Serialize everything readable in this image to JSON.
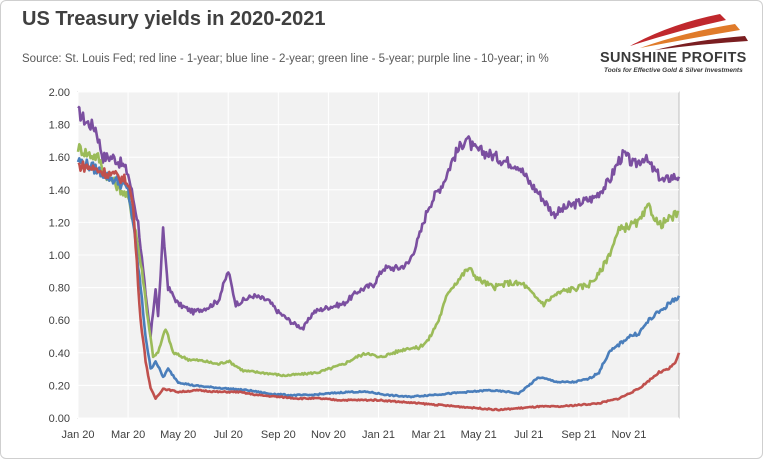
{
  "header": {
    "title": "US Treasury yields in 2020-2021",
    "subtitle": "Source: St. Louis Fed; red line - 1-year; blue line - 2-year; green line - 5-year; purple line - 10-year; in %"
  },
  "logo": {
    "name": "SUNSHINE PROFITS",
    "tagline": "Tools for Effective Gold & Silver Investments",
    "colors": [
      "#c0282d",
      "#e07b2a",
      "#7a1e21"
    ]
  },
  "chart_data": {
    "type": "line",
    "title": "US Treasury yields in 2020-2021",
    "xlabel": "",
    "ylabel": "",
    "ylim": [
      0,
      2
    ],
    "yticks": [
      "0.00",
      "0.20",
      "0.40",
      "0.60",
      "0.80",
      "1.00",
      "1.20",
      "1.40",
      "1.60",
      "1.80",
      "2.00"
    ],
    "xticks": [
      "Jan 20",
      "Mar 20",
      "May 20",
      "Jul 20",
      "Sep 20",
      "Nov 20",
      "Jan 21",
      "Mar 21",
      "May 21",
      "Jul 21",
      "Sep 21",
      "Nov 21"
    ],
    "xlim": [
      0,
      12
    ],
    "grid": true,
    "plot_background": "#f2f2f2",
    "series": [
      {
        "color": "#7b4fa0",
        "points": [
          [
            0,
            1.88
          ],
          [
            0.15,
            1.82
          ],
          [
            0.35,
            1.78
          ],
          [
            0.5,
            1.6
          ],
          [
            0.7,
            1.6
          ],
          [
            0.9,
            1.55
          ],
          [
            1.0,
            1.5
          ],
          [
            1.2,
            1.2
          ],
          [
            1.35,
            0.75
          ],
          [
            1.45,
            0.5
          ],
          [
            1.55,
            0.8
          ],
          [
            1.6,
            0.62
          ],
          [
            1.7,
            1.15
          ],
          [
            1.8,
            0.8
          ],
          [
            2.0,
            0.7
          ],
          [
            2.3,
            0.65
          ],
          [
            2.6,
            0.68
          ],
          [
            2.8,
            0.72
          ],
          [
            3.0,
            0.9
          ],
          [
            3.15,
            0.7
          ],
          [
            3.5,
            0.75
          ],
          [
            3.8,
            0.72
          ],
          [
            4.0,
            0.65
          ],
          [
            4.3,
            0.58
          ],
          [
            4.5,
            0.55
          ],
          [
            4.7,
            0.65
          ],
          [
            5.0,
            0.68
          ],
          [
            5.3,
            0.7
          ],
          [
            5.6,
            0.78
          ],
          [
            5.9,
            0.82
          ],
          [
            6.1,
            0.92
          ],
          [
            6.4,
            0.92
          ],
          [
            6.6,
            0.95
          ],
          [
            6.8,
            1.1
          ],
          [
            7.0,
            1.3
          ],
          [
            7.3,
            1.45
          ],
          [
            7.5,
            1.6
          ],
          [
            7.75,
            1.72
          ],
          [
            7.9,
            1.65
          ],
          [
            8.2,
            1.62
          ],
          [
            8.5,
            1.58
          ],
          [
            8.8,
            1.55
          ],
          [
            9.0,
            1.45
          ],
          [
            9.2,
            1.38
          ],
          [
            9.5,
            1.25
          ],
          [
            9.8,
            1.3
          ],
          [
            10.0,
            1.32
          ],
          [
            10.3,
            1.35
          ],
          [
            10.6,
            1.45
          ],
          [
            10.8,
            1.58
          ],
          [
            10.9,
            1.62
          ],
          [
            11.1,
            1.55
          ],
          [
            11.3,
            1.6
          ],
          [
            11.5,
            1.52
          ],
          [
            11.7,
            1.45
          ],
          [
            11.85,
            1.48
          ],
          [
            12.0,
            1.48
          ]
        ]
      },
      {
        "color": "#9bbb59",
        "points": [
          [
            0,
            1.66
          ],
          [
            0.2,
            1.62
          ],
          [
            0.4,
            1.6
          ],
          [
            0.55,
            1.5
          ],
          [
            0.8,
            1.42
          ],
          [
            1.0,
            1.35
          ],
          [
            1.15,
            1.15
          ],
          [
            1.3,
            0.85
          ],
          [
            1.4,
            0.6
          ],
          [
            1.5,
            0.38
          ],
          [
            1.6,
            0.4
          ],
          [
            1.75,
            0.55
          ],
          [
            1.9,
            0.4
          ],
          [
            2.2,
            0.36
          ],
          [
            2.5,
            0.35
          ],
          [
            2.8,
            0.33
          ],
          [
            3.0,
            0.35
          ],
          [
            3.3,
            0.29
          ],
          [
            3.6,
            0.28
          ],
          [
            3.9,
            0.27
          ],
          [
            4.1,
            0.26
          ],
          [
            4.5,
            0.27
          ],
          [
            4.8,
            0.28
          ],
          [
            5.0,
            0.3
          ],
          [
            5.3,
            0.33
          ],
          [
            5.6,
            0.38
          ],
          [
            5.8,
            0.4
          ],
          [
            6.0,
            0.37
          ],
          [
            6.3,
            0.4
          ],
          [
            6.6,
            0.43
          ],
          [
            6.8,
            0.43
          ],
          [
            7.0,
            0.48
          ],
          [
            7.2,
            0.6
          ],
          [
            7.4,
            0.78
          ],
          [
            7.6,
            0.85
          ],
          [
            7.8,
            0.92
          ],
          [
            8.0,
            0.85
          ],
          [
            8.3,
            0.8
          ],
          [
            8.6,
            0.83
          ],
          [
            8.9,
            0.82
          ],
          [
            9.1,
            0.75
          ],
          [
            9.3,
            0.7
          ],
          [
            9.5,
            0.75
          ],
          [
            9.7,
            0.78
          ],
          [
            10.0,
            0.8
          ],
          [
            10.2,
            0.82
          ],
          [
            10.4,
            0.88
          ],
          [
            10.6,
            1.0
          ],
          [
            10.8,
            1.15
          ],
          [
            11.0,
            1.18
          ],
          [
            11.2,
            1.2
          ],
          [
            11.4,
            1.3
          ],
          [
            11.6,
            1.18
          ],
          [
            11.8,
            1.22
          ],
          [
            12.0,
            1.26
          ]
        ]
      },
      {
        "color": "#4a7ebb",
        "points": [
          [
            0,
            1.58
          ],
          [
            0.2,
            1.55
          ],
          [
            0.4,
            1.52
          ],
          [
            0.6,
            1.48
          ],
          [
            0.8,
            1.45
          ],
          [
            1.0,
            1.4
          ],
          [
            1.1,
            1.2
          ],
          [
            1.25,
            0.8
          ],
          [
            1.35,
            0.5
          ],
          [
            1.45,
            0.3
          ],
          [
            1.55,
            0.35
          ],
          [
            1.7,
            0.25
          ],
          [
            1.8,
            0.3
          ],
          [
            2.0,
            0.22
          ],
          [
            2.3,
            0.2
          ],
          [
            2.6,
            0.19
          ],
          [
            3.0,
            0.18
          ],
          [
            3.4,
            0.17
          ],
          [
            3.8,
            0.15
          ],
          [
            4.2,
            0.14
          ],
          [
            4.6,
            0.14
          ],
          [
            5.0,
            0.15
          ],
          [
            5.4,
            0.16
          ],
          [
            5.8,
            0.16
          ],
          [
            6.2,
            0.14
          ],
          [
            6.6,
            0.13
          ],
          [
            7.0,
            0.14
          ],
          [
            7.4,
            0.15
          ],
          [
            7.8,
            0.16
          ],
          [
            8.2,
            0.17
          ],
          [
            8.6,
            0.16
          ],
          [
            8.8,
            0.15
          ],
          [
            9.0,
            0.2
          ],
          [
            9.2,
            0.25
          ],
          [
            9.6,
            0.22
          ],
          [
            9.9,
            0.22
          ],
          [
            10.2,
            0.24
          ],
          [
            10.4,
            0.28
          ],
          [
            10.6,
            0.4
          ],
          [
            10.8,
            0.45
          ],
          [
            11.0,
            0.5
          ],
          [
            11.2,
            0.52
          ],
          [
            11.4,
            0.6
          ],
          [
            11.6,
            0.65
          ],
          [
            11.8,
            0.7
          ],
          [
            12.0,
            0.75
          ]
        ]
      },
      {
        "color": "#c0504d",
        "points": [
          [
            0,
            1.55
          ],
          [
            0.2,
            1.54
          ],
          [
            0.4,
            1.52
          ],
          [
            0.6,
            1.5
          ],
          [
            0.8,
            1.48
          ],
          [
            1.0,
            1.45
          ],
          [
            1.1,
            1.3
          ],
          [
            1.25,
            0.6
          ],
          [
            1.35,
            0.35
          ],
          [
            1.45,
            0.18
          ],
          [
            1.55,
            0.12
          ],
          [
            1.7,
            0.18
          ],
          [
            2.0,
            0.16
          ],
          [
            2.4,
            0.17
          ],
          [
            2.8,
            0.16
          ],
          [
            3.2,
            0.16
          ],
          [
            3.6,
            0.14
          ],
          [
            4.0,
            0.13
          ],
          [
            4.4,
            0.12
          ],
          [
            4.8,
            0.12
          ],
          [
            5.2,
            0.11
          ],
          [
            5.6,
            0.11
          ],
          [
            6.0,
            0.11
          ],
          [
            6.4,
            0.1
          ],
          [
            6.8,
            0.09
          ],
          [
            7.2,
            0.08
          ],
          [
            7.6,
            0.07
          ],
          [
            8.0,
            0.06
          ],
          [
            8.4,
            0.05
          ],
          [
            8.8,
            0.06
          ],
          [
            9.2,
            0.07
          ],
          [
            9.6,
            0.07
          ],
          [
            10.0,
            0.08
          ],
          [
            10.4,
            0.09
          ],
          [
            10.8,
            0.12
          ],
          [
            11.0,
            0.15
          ],
          [
            11.2,
            0.18
          ],
          [
            11.4,
            0.23
          ],
          [
            11.6,
            0.28
          ],
          [
            11.8,
            0.3
          ],
          [
            11.95,
            0.35
          ],
          [
            12.0,
            0.4
          ]
        ]
      }
    ]
  }
}
